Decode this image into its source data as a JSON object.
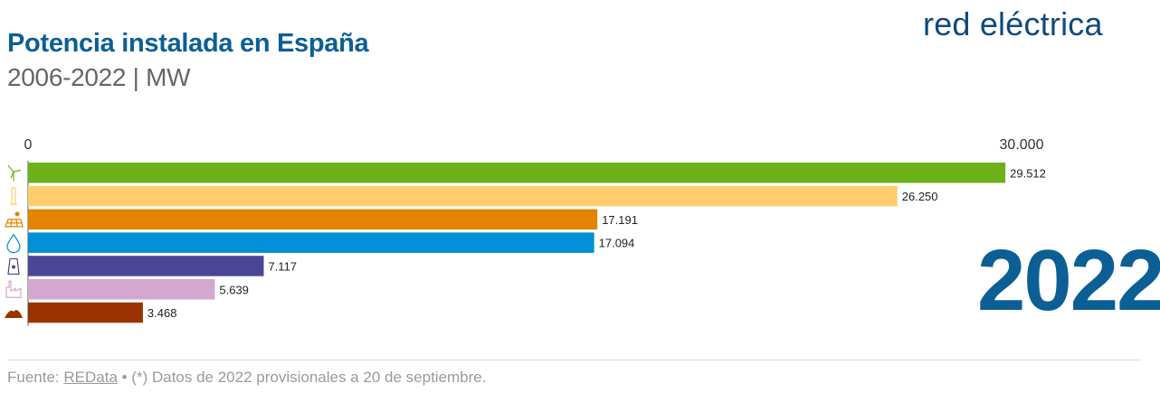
{
  "header": {
    "title": "Potencia instalada en España",
    "subtitle": "2006-2022 | MW",
    "logo": "red eléctrica"
  },
  "year_label": "2022",
  "footer": {
    "prefix": "Fuente: ",
    "link": "REData",
    "rest": " • (*) Datos de 2022 provisionales a 20 de septiembre."
  },
  "colors": {
    "title": "#0b5f95",
    "wind": "#6db11a",
    "solar": "#ffcd6b",
    "cogen": "#e38400",
    "hydro": "#008fd6",
    "nuclear": "#4b4596",
    "gas_coal": "#d4a7cf",
    "coal": "#9a3300"
  },
  "chart_data": {
    "type": "bar",
    "orientation": "horizontal",
    "title": "Potencia instalada en España",
    "subtitle": "2006-2022 | MW",
    "xlim": [
      0,
      30000
    ],
    "x_ticks": [
      "0",
      "30.000"
    ],
    "grid": false,
    "categories": [
      "wind-icon",
      "solar-panel-icon",
      "solar-array-icon",
      "water-drop-icon",
      "nuclear-plant-icon",
      "factory-icon",
      "coal-pile-icon"
    ],
    "icons": [
      "wind-icon",
      "solar-panel-icon",
      "solar-array-icon",
      "water-drop-icon",
      "nuclear-plant-icon",
      "factory-icon",
      "coal-pile-icon"
    ],
    "values": [
      29512,
      26250,
      17191,
      17094,
      7117,
      5639,
      3468
    ],
    "value_labels": [
      "29.512",
      "26.250",
      "17.191",
      "17.094",
      "7.117",
      "5.639",
      "3.468"
    ],
    "bar_colors": [
      "#6db11a",
      "#ffcd6b",
      "#e38400",
      "#008fd6",
      "#4b4596",
      "#d4a7cf",
      "#9a3300"
    ]
  }
}
